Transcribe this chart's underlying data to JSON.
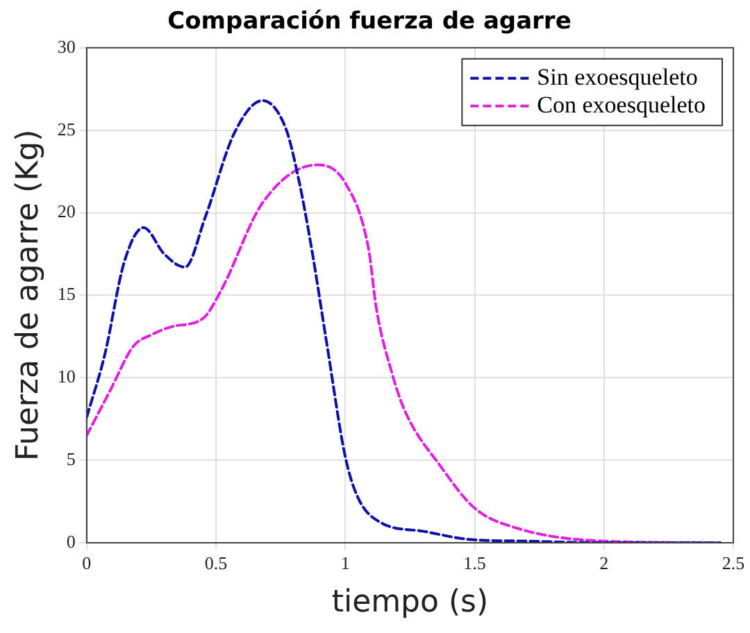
{
  "chart_data": {
    "type": "line",
    "title": "Comparación fuerza de agarre",
    "xlabel": "tiempo (s)",
    "ylabel": "Fuerza de agarre (Kg)",
    "xlim": [
      0,
      2.5
    ],
    "xticks": [
      0,
      0.5,
      1,
      1.5,
      2,
      2.5
    ],
    "ylim": [
      0,
      30
    ],
    "yticks": [
      0,
      5,
      10,
      15,
      20,
      25,
      30
    ],
    "grid": true,
    "legend": "top right",
    "marker": "none",
    "line_style": "dashed",
    "series": [
      {
        "name": "Sin exoesqueleto",
        "color": "#1010a8",
        "x": [
          0,
          0.07,
          0.145,
          0.22,
          0.3,
          0.38,
          0.46,
          0.57,
          0.68,
          0.77,
          0.82,
          0.87,
          0.93,
          1.0,
          1.05,
          1.14,
          1.3,
          1.48,
          1.7,
          2.0,
          2.45
        ],
        "values": [
          7.6,
          11.4,
          17,
          19.1,
          17.5,
          16.7,
          19.8,
          24.8,
          26.8,
          25.1,
          22,
          17.8,
          11.9,
          5.2,
          2.7,
          1.2,
          0.7,
          0.2,
          0.1,
          0,
          0
        ]
      },
      {
        "name": "Con exoesqueleto",
        "color": "#e020e0",
        "x": [
          0,
          0.09,
          0.18,
          0.25,
          0.33,
          0.45,
          0.52,
          0.68,
          0.89,
          1.0,
          1.09,
          1.12,
          1.18,
          1.23,
          1.37,
          1.5,
          1.66,
          2.0,
          2.45
        ],
        "values": [
          6.5,
          9.2,
          11.9,
          12.6,
          13.1,
          13.6,
          15.3,
          20.6,
          22.9,
          21.8,
          17.8,
          14.2,
          10.3,
          8,
          4.6,
          2.1,
          0.9,
          0.1,
          0
        ]
      }
    ]
  }
}
